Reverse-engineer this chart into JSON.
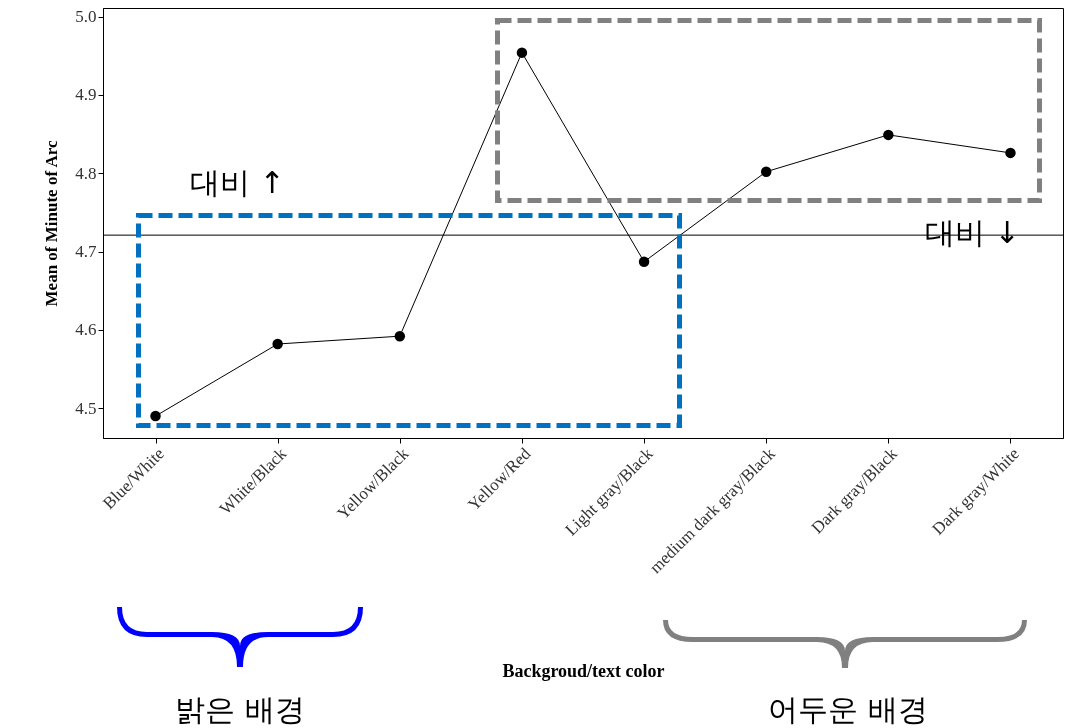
{
  "chart_data": {
    "type": "line",
    "xlabel": "Backgroud/text color",
    "ylabel": "Mean of Minute of Arc",
    "categories": [
      "Blue/White",
      "White/Black",
      "Yellow/Black",
      "Yellow/Red",
      "Light gray/Black",
      "medium dark gray/Black",
      "Dark gray/Black",
      "Dark gray/White"
    ],
    "series": [
      {
        "color": "#000000",
        "values": [
          4.49,
          4.582,
          4.592,
          4.954,
          4.687,
          4.802,
          4.849,
          4.826
        ]
      }
    ],
    "ylim": [
      4.462,
      5.011
    ],
    "yticks": [
      4.5,
      4.6,
      4.7,
      4.8,
      4.9,
      {
        "value": 5,
        "label": "5.0"
      }
    ],
    "ref_lines": [
      {
        "axis": "y",
        "value": 4.721,
        "color": "#000000"
      }
    ],
    "marker": "circle",
    "grid": false,
    "annotations": [
      "대비 ↑",
      "대비 ↓",
      "밝은 배경",
      "어두운 배경"
    ]
  }
}
